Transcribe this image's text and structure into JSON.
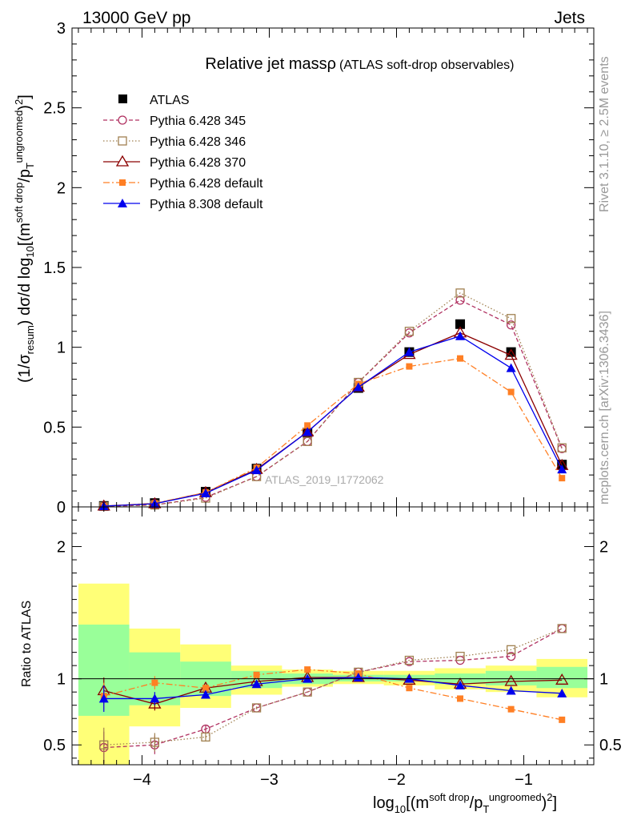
{
  "header": {
    "energy_label": "13000 GeV pp",
    "category_label": "Jets"
  },
  "side_labels": {
    "rivet": "Rivet 3.1.10, ≥ 2.5M events",
    "mcplots": "mcplots.cern.ch [arXiv:1306.3436]"
  },
  "watermark": "ATLAS_2019_I1772062",
  "chart_data": [
    {
      "type": "line",
      "panel": "main",
      "title": "Relative jet massρ",
      "subtitle": "(ATLAS soft-drop observables)",
      "ylabel_parts": {
        "pre": "(1/σ",
        "sub1": "resum",
        "mid": ") dσ/d log",
        "sub2": "10",
        "post": "[(m",
        "sup": "soft drop",
        "post2": "/p",
        "sub3": "T",
        "sup2": "ungroomed",
        "post3": ")",
        "sup3": "2",
        "post4": "]"
      },
      "x": [
        -4.3,
        -3.9,
        -3.5,
        -3.1,
        -2.7,
        -2.3,
        -1.9,
        -1.5,
        -1.1,
        -0.7
      ],
      "xlim": [
        -4.55,
        -0.45
      ],
      "ylim": [
        0,
        3
      ],
      "yticks": [
        0,
        0.5,
        1,
        1.5,
        2,
        2.5,
        3
      ],
      "ytick_labels": [
        "0",
        "0.5",
        "1",
        "1.5",
        "2",
        "2.5",
        "3"
      ],
      "series": [
        {
          "name": "ATLAS",
          "color": "#000000",
          "marker": "filled-square",
          "line": "none",
          "values": [
            0.006,
            0.024,
            0.095,
            0.24,
            0.465,
            0.745,
            0.97,
            1.145,
            0.97,
            0.265
          ]
        },
        {
          "name": "Pythia 6.428 345",
          "color": "#b03060",
          "marker": "open-circle",
          "line": "dashed",
          "values": [
            0.003,
            0.012,
            0.06,
            0.19,
            0.41,
            0.78,
            1.09,
            1.295,
            1.14,
            0.365
          ]
        },
        {
          "name": "Pythia 6.428 346",
          "color": "#a08050",
          "marker": "open-square",
          "line": "dotted",
          "values": [
            0.003,
            0.012,
            0.055,
            0.19,
            0.41,
            0.78,
            1.1,
            1.34,
            1.18,
            0.37
          ]
        },
        {
          "name": "Pythia 6.428 370",
          "color": "#8b0000",
          "marker": "open-triangle",
          "line": "solid",
          "values": [
            0.0055,
            0.02,
            0.09,
            0.235,
            0.47,
            0.75,
            0.955,
            1.09,
            0.95,
            0.26
          ]
        },
        {
          "name": "Pythia 6.428 default",
          "color": "#ff7f24",
          "marker": "filled-square-small",
          "line": "dashdot",
          "values": [
            0.005,
            0.023,
            0.09,
            0.245,
            0.51,
            0.77,
            0.88,
            0.93,
            0.72,
            0.18
          ]
        },
        {
          "name": "Pythia 8.308 default",
          "color": "#0000ee",
          "marker": "filled-triangle",
          "line": "solid",
          "values": [
            0.005,
            0.02,
            0.085,
            0.23,
            0.47,
            0.75,
            0.97,
            1.07,
            0.87,
            0.235
          ]
        }
      ]
    },
    {
      "type": "line",
      "panel": "ratio",
      "ylabel": "Ratio to ATLAS",
      "xlabel_parts": {
        "pre": "log",
        "sub": "10",
        "mid": "[(m",
        "sup": "soft drop",
        "mid2": "/p",
        "sub2": "T",
        "sup2": "ungroomed",
        "mid3": ")",
        "sup3": "2",
        "post": "]"
      },
      "x": [
        -4.3,
        -3.9,
        -3.5,
        -3.1,
        -2.7,
        -2.3,
        -1.9,
        -1.5,
        -1.1,
        -0.7
      ],
      "xlim": [
        -4.55,
        -0.45
      ],
      "ylim": [
        0.35,
        2.3
      ],
      "xticks": [
        -4,
        -3,
        -2,
        -1
      ],
      "xtick_labels": [
        "−4",
        "−3",
        "−2",
        "−1"
      ],
      "yticks": [
        0.5,
        1,
        2
      ],
      "ytick_labels": [
        "0.5",
        "1",
        "2"
      ],
      "bands": {
        "edges": [
          -4.5,
          -4.1,
          -3.7,
          -3.3,
          -2.9,
          -2.5,
          -2.1,
          -1.7,
          -1.3,
          -0.9,
          -0.5
        ],
        "yellow": [
          [
            0.35,
            1.72
          ],
          [
            0.64,
            1.38
          ],
          [
            0.78,
            1.26
          ],
          [
            0.88,
            1.1
          ],
          [
            0.94,
            1.07
          ],
          [
            0.96,
            1.06
          ],
          [
            0.95,
            1.06
          ],
          [
            0.92,
            1.08
          ],
          [
            0.9,
            1.1
          ],
          [
            0.86,
            1.15
          ]
        ],
        "green": [
          [
            0.72,
            1.41
          ],
          [
            0.8,
            1.2
          ],
          [
            0.87,
            1.13
          ],
          [
            0.93,
            1.06
          ],
          [
            0.96,
            1.04
          ],
          [
            0.98,
            1.03
          ],
          [
            0.98,
            1.03
          ],
          [
            0.96,
            1.04
          ],
          [
            0.95,
            1.06
          ],
          [
            0.93,
            1.09
          ]
        ],
        "yellow_color": "#ffff77",
        "green_color": "#99ff99"
      },
      "series": [
        {
          "name": "Pythia 6.428 345",
          "color": "#b03060",
          "marker": "open-circle",
          "line": "dashed",
          "values": [
            0.48,
            0.5,
            0.62,
            0.78,
            0.9,
            1.05,
            1.13,
            1.14,
            1.17,
            1.38
          ],
          "errors": [
            0.12,
            0.07,
            0.03,
            0.01,
            0.005,
            0.005,
            0.005,
            0.005,
            0.005,
            0.005
          ]
        },
        {
          "name": "Pythia 6.428 346",
          "color": "#a08050",
          "marker": "open-square",
          "line": "dotted",
          "values": [
            0.5,
            0.52,
            0.56,
            0.78,
            0.9,
            1.05,
            1.14,
            1.17,
            1.22,
            1.38
          ],
          "errors": [
            0.13,
            0.07,
            0.03,
            0.01,
            0.005,
            0.005,
            0.005,
            0.005,
            0.005,
            0.005
          ]
        },
        {
          "name": "Pythia 6.428 370",
          "color": "#8b0000",
          "marker": "open-triangle",
          "line": "solid",
          "values": [
            0.91,
            0.81,
            0.93,
            0.98,
            1.01,
            1.01,
            0.99,
            0.96,
            0.98,
            0.99
          ],
          "errors": [
            0.1,
            0.05,
            0.02,
            0.01,
            0.005,
            0.005,
            0.005,
            0.005,
            0.005,
            0.005
          ]
        },
        {
          "name": "Pythia 6.428 default",
          "color": "#ff7f24",
          "marker": "filled-square-small",
          "line": "dashdot",
          "values": [
            0.87,
            0.97,
            0.93,
            1.03,
            1.07,
            1.04,
            0.93,
            0.85,
            0.77,
            0.69
          ],
          "errors": [
            0.1,
            0.05,
            0.02,
            0.01,
            0.005,
            0.005,
            0.005,
            0.005,
            0.005,
            0.005
          ]
        },
        {
          "name": "Pythia 8.308 default",
          "color": "#0000ee",
          "marker": "filled-triangle",
          "line": "solid",
          "values": [
            0.85,
            0.85,
            0.88,
            0.96,
            1.0,
            1.01,
            1.0,
            0.95,
            0.91,
            0.89
          ],
          "errors": [
            0.1,
            0.05,
            0.02,
            0.01,
            0.005,
            0.005,
            0.005,
            0.005,
            0.005,
            0.005
          ]
        }
      ]
    }
  ]
}
